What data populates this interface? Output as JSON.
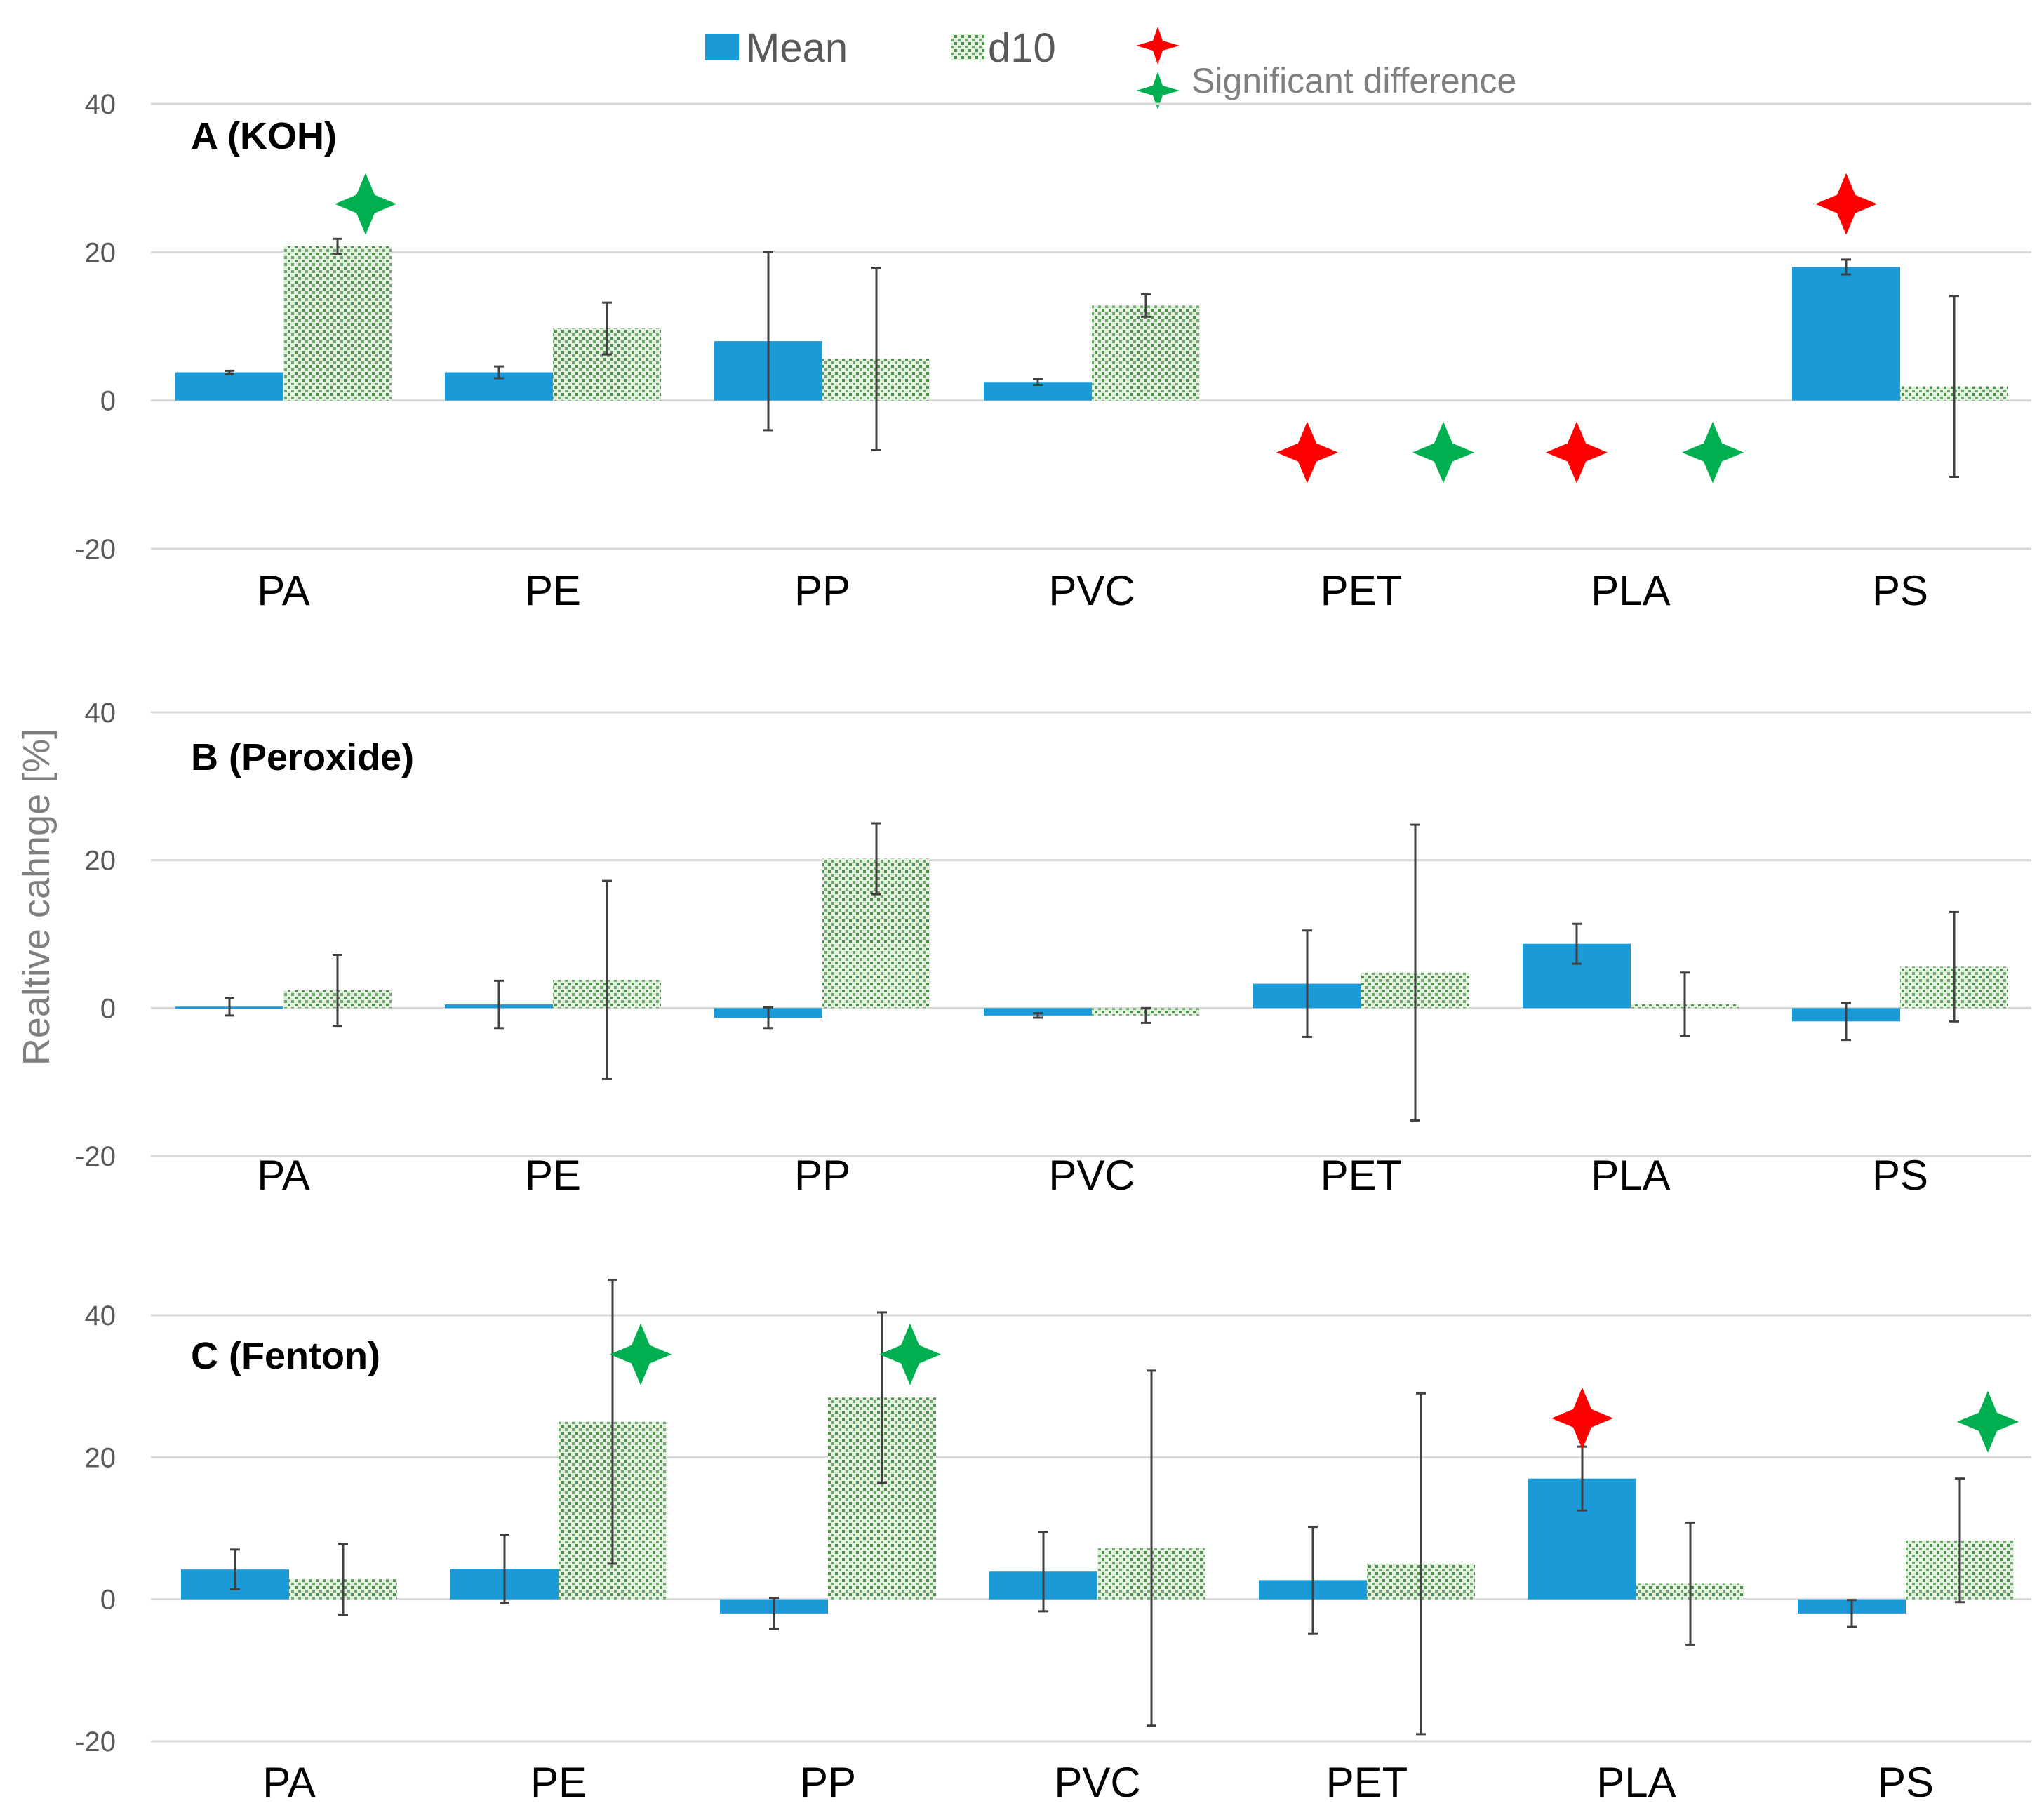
{
  "chart_data": {
    "type": "bar",
    "ylabel": "Realtive cahnge [%]",
    "categories": [
      "PA",
      "PE",
      "PP",
      "PVC",
      "PET",
      "PLA",
      "PS"
    ],
    "legend": {
      "series": [
        {
          "name": "Mean",
          "color": "#1a9bd7",
          "pattern": "solid"
        },
        {
          "name": "d10",
          "color": "#7fb77e",
          "pattern": "dotted"
        }
      ],
      "significance_label": "Significant difference",
      "marker_colors": {
        "mean": "#ff0000",
        "d10": "#00b050"
      }
    },
    "panels": [
      {
        "title": "A (KOH)",
        "ylim": [
          -20,
          40
        ],
        "yticks": [
          -20,
          0,
          20,
          40
        ],
        "series": [
          {
            "name": "Mean",
            "values": [
              3.8,
              3.8,
              8.0,
              2.5,
              null,
              null,
              18.0
            ],
            "errors": [
              0.2,
              0.8,
              12.0,
              0.4,
              null,
              null,
              1.0
            ]
          },
          {
            "name": "d10",
            "values": [
              20.8,
              9.7,
              5.6,
              12.8,
              null,
              null,
              1.9
            ],
            "errors": [
              1.0,
              3.5,
              12.3,
              1.5,
              null,
              null,
              12.2
            ]
          }
        ],
        "significance": [
          {
            "category": "PA",
            "series": "d10",
            "value": 26.5
          },
          {
            "category": "PET",
            "series": "Mean",
            "value": -7
          },
          {
            "category": "PET",
            "series": "d10",
            "value": -7
          },
          {
            "category": "PLA",
            "series": "Mean",
            "value": -7
          },
          {
            "category": "PLA",
            "series": "d10",
            "value": -7
          },
          {
            "category": "PS",
            "series": "Mean",
            "value": 26.5
          }
        ]
      },
      {
        "title": "B (Peroxide)",
        "ylim": [
          -20,
          40
        ],
        "yticks": [
          -20,
          0,
          20,
          40
        ],
        "series": [
          {
            "name": "Mean",
            "values": [
              0.2,
              0.5,
              -1.3,
              -1.0,
              3.3,
              8.7,
              -1.8
            ],
            "errors": [
              1.2,
              3.2,
              1.4,
              0.3,
              7.2,
              2.7,
              2.5
            ]
          },
          {
            "name": "d10",
            "values": [
              2.4,
              3.8,
              20.2,
              -1.0,
              4.8,
              0.5,
              5.6
            ],
            "errors": [
              4.8,
              13.4,
              4.8,
              1.0,
              20.0,
              4.3,
              7.4
            ]
          }
        ],
        "significance": []
      },
      {
        "title": "C (Fenton)",
        "ylim": [
          -20,
          40
        ],
        "yticks": [
          -20,
          0,
          20,
          40
        ],
        "series": [
          {
            "name": "Mean",
            "values": [
              4.2,
              4.3,
              -2.0,
              3.9,
              2.7,
              17.0,
              -2.0
            ],
            "errors": [
              2.8,
              4.8,
              2.2,
              5.6,
              7.5,
              4.5,
              1.9
            ]
          },
          {
            "name": "d10",
            "values": [
              2.8,
              25.0,
              28.4,
              7.2,
              5.0,
              2.2,
              8.3
            ],
            "errors": [
              5.0,
              20.0,
              12.0,
              25.0,
              24.0,
              8.6,
              8.7
            ]
          }
        ],
        "significance": [
          {
            "category": "PE",
            "series": "d10",
            "value": 34.5
          },
          {
            "category": "PP",
            "series": "d10",
            "value": 34.5
          },
          {
            "category": "PLA",
            "series": "Mean",
            "value": 25.5
          },
          {
            "category": "PS",
            "series": "d10",
            "value": 25.0
          }
        ]
      }
    ]
  }
}
